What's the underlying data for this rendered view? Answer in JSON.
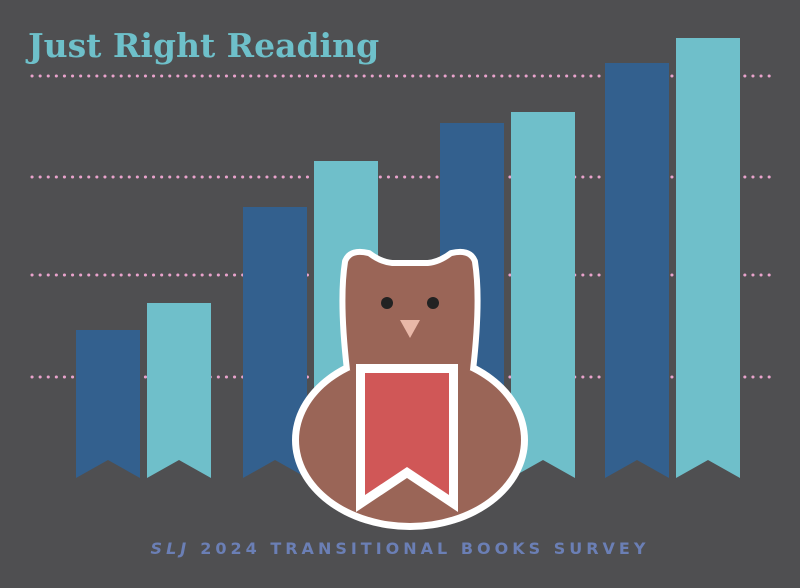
{
  "header": {
    "title": "Just Right Reading"
  },
  "footer": {
    "brand": "SLJ",
    "text": "2024 TRANSITIONAL BOOKS SURVEY"
  }
}
